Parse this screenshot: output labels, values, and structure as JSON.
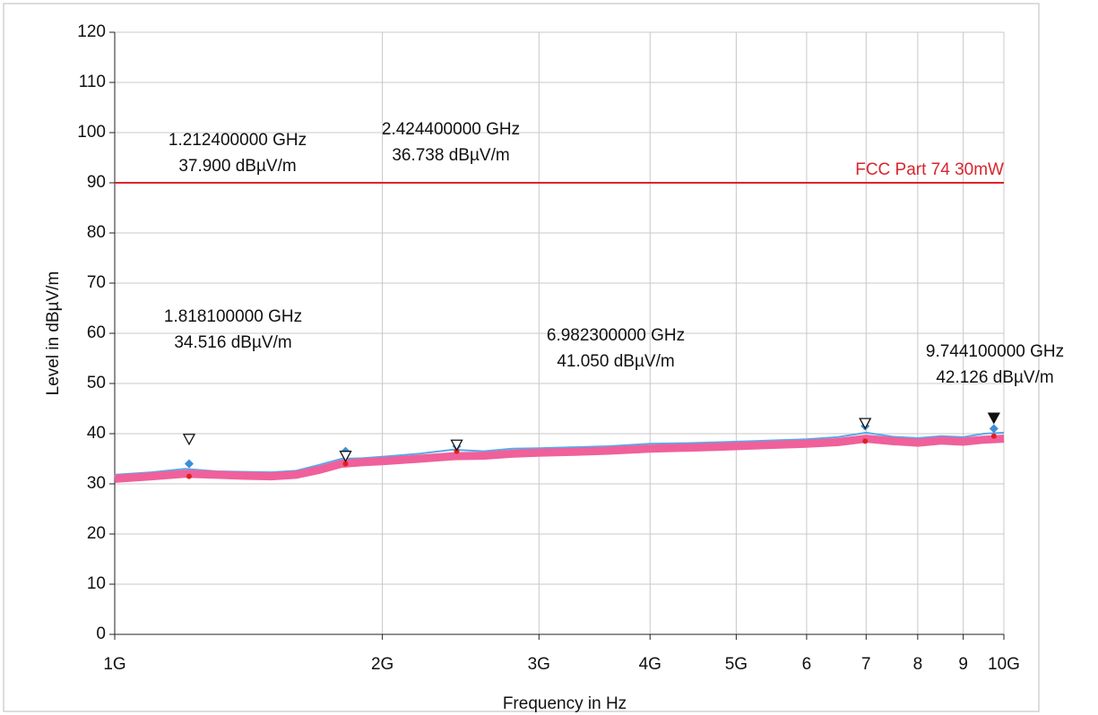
{
  "chart_data": {
    "type": "line",
    "log_x": true,
    "xlabel": "Frequency in Hz",
    "ylabel": "Level in dBµV/m",
    "xlim": [
      1,
      10
    ],
    "ylim": [
      0,
      120
    ],
    "xticks": [
      {
        "value": 1,
        "label": "1G"
      },
      {
        "value": 2,
        "label": "2G"
      },
      {
        "value": 3,
        "label": "3G"
      },
      {
        "value": 4,
        "label": "4G"
      },
      {
        "value": 5,
        "label": "5G"
      },
      6,
      7,
      8,
      9,
      {
        "value": 10,
        "label": "10G"
      }
    ],
    "yticks": [
      0,
      10,
      20,
      30,
      40,
      50,
      60,
      70,
      80,
      90,
      100,
      110,
      120
    ],
    "grid": true,
    "x": [
      1.0,
      1.1,
      1.2,
      1.3,
      1.4,
      1.5,
      1.6,
      1.7,
      1.8,
      1.9,
      2.0,
      2.2,
      2.4,
      2.6,
      2.8,
      3.0,
      3.3,
      3.6,
      4.0,
      4.4,
      4.8,
      5.2,
      5.6,
      6.0,
      6.5,
      7.0,
      7.5,
      8.0,
      8.5,
      9.0,
      9.5,
      10.0
    ],
    "series": [
      {
        "color": "#5aa9e6",
        "width": 2,
        "values": [
          31.8,
          32.3,
          33,
          32.5,
          32.4,
          32.3,
          32.6,
          33.8,
          35,
          35.1,
          35.4,
          36,
          36.8,
          36.5,
          37,
          37.1,
          37.3,
          37.5,
          38,
          38.1,
          38.3,
          38.5,
          38.7,
          38.9,
          39.3,
          40.2,
          39.4,
          39.1,
          39.5,
          39.3,
          40,
          40.2
        ]
      },
      {
        "color": "#f0609a",
        "width": 9,
        "values": [
          31,
          31.5,
          32,
          31.8,
          31.6,
          31.5,
          31.8,
          32.8,
          34,
          34.3,
          34.5,
          35,
          35.5,
          35.6,
          36,
          36.2,
          36.4,
          36.6,
          37,
          37.2,
          37.4,
          37.6,
          37.8,
          38,
          38.3,
          39,
          38.5,
          38.2,
          38.6,
          38.4,
          38.8,
          39
        ]
      }
    ],
    "limit_line": {
      "name": "FCC Part 74 30mW",
      "value": 90,
      "color": "#d9262e"
    },
    "markers": {
      "x": [
        1.2124,
        1.8181,
        2.4244,
        6.9823,
        9.7441
      ],
      "values": [
        37.9,
        34.516,
        36.738,
        41.05,
        42.126
      ],
      "x_labels": [
        "1.212400000 GHz",
        "1.818100000 GHz",
        "2.424400000 GHz",
        "6.982300000 GHz",
        "9.744100000 GHz"
      ],
      "value_labels": [
        "37.900 dBµV/m",
        "34.516 dBµV/m",
        "36.738 dBµV/m",
        "41.050 dBµV/m",
        "42.126 dBµV/m"
      ],
      "filled": [
        false,
        false,
        false,
        false,
        true
      ]
    },
    "peak_points": {
      "color": "#3a8fd8",
      "values": [
        34,
        36.5,
        37.5,
        41.5,
        41
      ]
    },
    "avg_points": {
      "color": "#e02020",
      "values": [
        31.5,
        34,
        36.5,
        38.5,
        39.5
      ]
    }
  }
}
